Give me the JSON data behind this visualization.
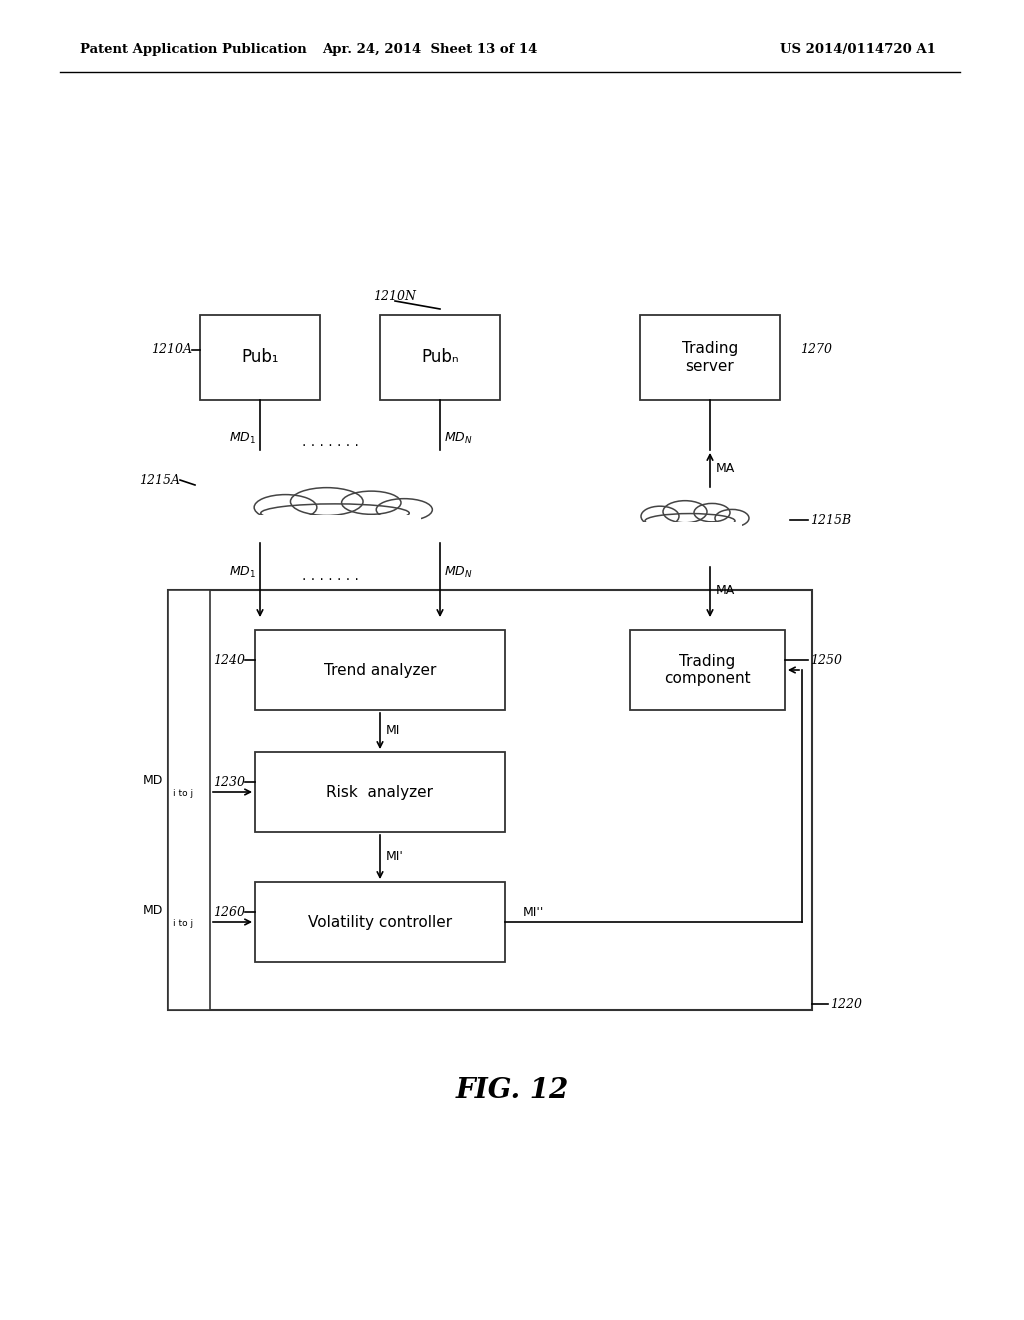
{
  "bg_color": "#ffffff",
  "header_left": "Patent Application Publication",
  "header_mid": "Apr. 24, 2014  Sheet 13 of 14",
  "header_right": "US 2014/0114720 A1",
  "fig_caption": "FIG. 12",
  "pub1_label": "Pub₁",
  "pubN_label": "Pubₙ",
  "trading_server_label": "Trading\nserver",
  "trend_analyzer_label": "Trend analyzer",
  "trading_component_label": "Trading\ncomponent",
  "risk_analyzer_label": "Risk  analyzer",
  "volatility_controller_label": "Volatility controller"
}
